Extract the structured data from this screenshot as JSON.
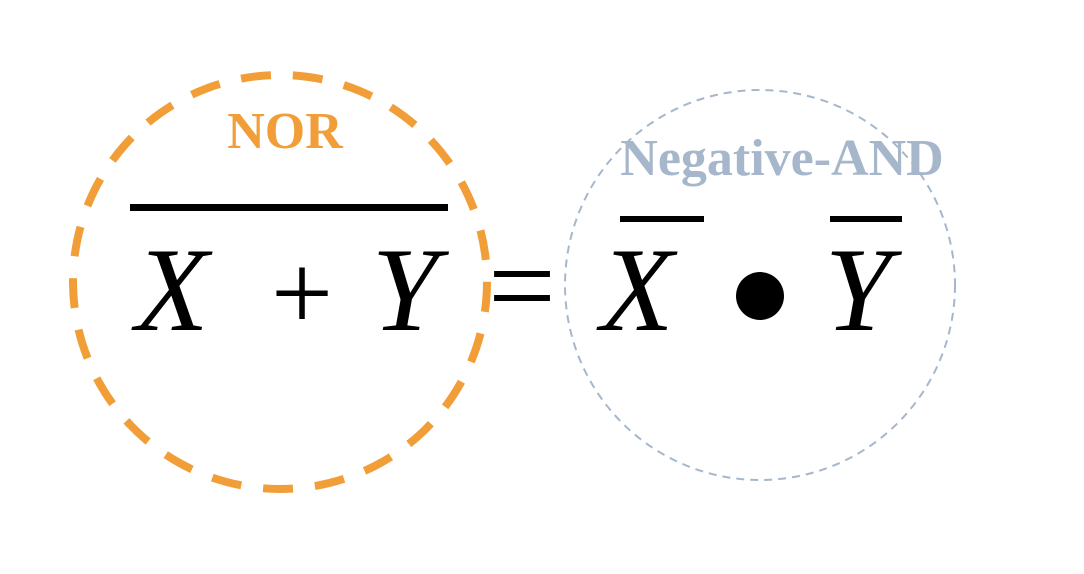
{
  "labels": {
    "left": "NOR",
    "right": "Negative-AND"
  },
  "equation": {
    "left_var": "X",
    "left_op": "+",
    "left_var2": "Y",
    "equals": "=",
    "right_var": "X",
    "right_op": "•",
    "right_var2": "Y"
  },
  "colors": {
    "left_circle": "#F29E38",
    "right_circle": "#A6B7CC",
    "left_label": "#F29E38",
    "right_label": "#A6B7CC",
    "text": "#000000"
  },
  "notation": {
    "left_side_overbar": true,
    "right_side_individual_overbars": true
  }
}
